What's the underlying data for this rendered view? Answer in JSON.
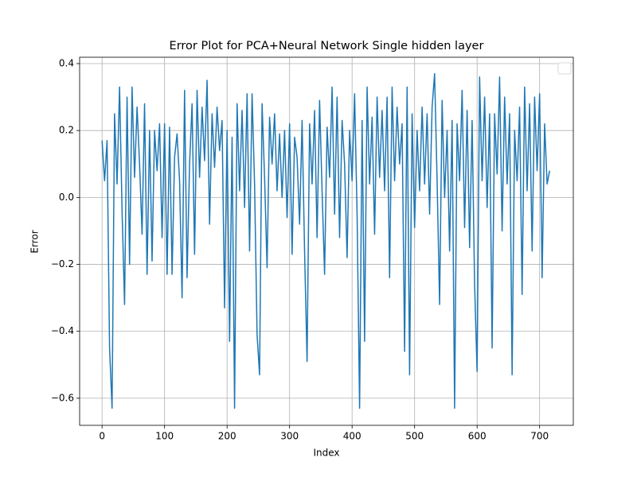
{
  "chart_data": {
    "type": "line",
    "title": "Error Plot for PCA+Neural Network Single hidden layer",
    "x_label": "Index",
    "y_label": "Error",
    "color": "#1f77b4",
    "grid": true,
    "legend": "upper right",
    "xlim": [
      -35.9,
      753.9
    ],
    "ylim": [
      -0.681,
      0.419
    ],
    "xticks": [
      0,
      100,
      200,
      300,
      400,
      500,
      600,
      700
    ],
    "yticks": [
      {
        "value": -0.6,
        "label": "−0.6"
      },
      {
        "value": -0.4,
        "label": "−0.4"
      },
      {
        "value": -0.2,
        "label": "−0.2"
      },
      {
        "value": 0,
        "label": "0.0"
      },
      0.2,
      0.4
    ],
    "x": [
      0,
      4,
      8,
      12,
      16,
      20,
      24,
      28,
      32,
      36,
      40,
      44,
      48,
      52,
      56,
      60,
      64,
      68,
      72,
      76,
      80,
      84,
      88,
      92,
      96,
      100,
      104,
      108,
      112,
      116,
      120,
      124,
      128,
      132,
      136,
      140,
      144,
      148,
      152,
      156,
      160,
      164,
      168,
      172,
      176,
      180,
      184,
      188,
      192,
      196,
      200,
      204,
      208,
      212,
      216,
      220,
      224,
      228,
      232,
      236,
      240,
      244,
      248,
      252,
      256,
      260,
      264,
      268,
      272,
      276,
      280,
      284,
      288,
      292,
      296,
      300,
      304,
      308,
      312,
      316,
      320,
      324,
      328,
      332,
      336,
      340,
      344,
      348,
      352,
      356,
      360,
      364,
      368,
      372,
      376,
      380,
      384,
      388,
      392,
      396,
      400,
      404,
      408,
      412,
      416,
      420,
      424,
      428,
      432,
      436,
      440,
      444,
      448,
      452,
      456,
      460,
      464,
      468,
      472,
      476,
      480,
      484,
      488,
      492,
      496,
      500,
      504,
      508,
      512,
      516,
      520,
      524,
      528,
      532,
      536,
      540,
      544,
      548,
      552,
      556,
      560,
      564,
      568,
      572,
      576,
      580,
      584,
      588,
      592,
      596,
      600,
      604,
      608,
      612,
      616,
      620,
      624,
      628,
      632,
      636,
      640,
      644,
      648,
      652,
      656,
      660,
      664,
      668,
      672,
      676,
      680,
      684,
      688,
      692,
      696,
      700,
      704,
      708,
      712,
      716
    ],
    "values": [
      0.17,
      0.05,
      0.17,
      -0.45,
      -0.63,
      0.25,
      0.04,
      0.33,
      -0.04,
      -0.32,
      0.3,
      -0.2,
      0.33,
      0.06,
      0.27,
      0.1,
      -0.11,
      0.28,
      -0.23,
      0.2,
      -0.19,
      0.2,
      0.08,
      0.22,
      -0.12,
      0.22,
      -0.23,
      0.21,
      -0.23,
      0.12,
      0.19,
      0.05,
      -0.3,
      0.32,
      -0.24,
      0.1,
      0.28,
      -0.17,
      0.32,
      0.06,
      0.27,
      0.11,
      0.35,
      -0.08,
      0.25,
      0.09,
      0.27,
      0.14,
      0.23,
      -0.33,
      0.2,
      -0.43,
      0.18,
      -0.63,
      0.28,
      0.02,
      0.26,
      -0.03,
      0.31,
      -0.16,
      0.31,
      0.04,
      -0.41,
      -0.53,
      0.28,
      0.06,
      -0.21,
      0.24,
      0.1,
      0.25,
      0.02,
      0.19,
      0.0,
      0.2,
      -0.06,
      0.22,
      -0.17,
      0.18,
      0.12,
      -0.08,
      0.23,
      -0.16,
      -0.49,
      0.22,
      0.04,
      0.26,
      -0.12,
      0.29,
      0.02,
      -0.23,
      0.21,
      0.06,
      0.33,
      -0.05,
      0.3,
      -0.12,
      0.23,
      0.1,
      -0.18,
      0.2,
      0.05,
      0.31,
      -0.05,
      -0.63,
      0.23,
      -0.43,
      0.33,
      0.04,
      0.24,
      -0.11,
      0.3,
      0.06,
      0.26,
      0.02,
      0.3,
      -0.24,
      0.33,
      0.05,
      0.27,
      0.1,
      0.22,
      -0.46,
      0.33,
      -0.53,
      0.25,
      -0.09,
      0.2,
      0.02,
      0.27,
      0.04,
      0.25,
      -0.05,
      0.27,
      0.37,
      0.05,
      -0.32,
      0.29,
      0.0,
      0.2,
      -0.16,
      0.23,
      -0.63,
      0.22,
      0.05,
      0.32,
      -0.09,
      0.26,
      -0.15,
      0.23,
      -0.26,
      -0.52,
      0.36,
      0.05,
      0.3,
      -0.03,
      0.25,
      -0.45,
      0.25,
      0.07,
      0.36,
      -0.1,
      0.3,
      0.04,
      0.25,
      -0.53,
      0.2,
      0.05,
      0.27,
      -0.29,
      0.33,
      0.02,
      0.28,
      -0.16,
      0.3,
      0.08,
      0.31,
      -0.24,
      0.22,
      0.04,
      0.08
    ]
  }
}
